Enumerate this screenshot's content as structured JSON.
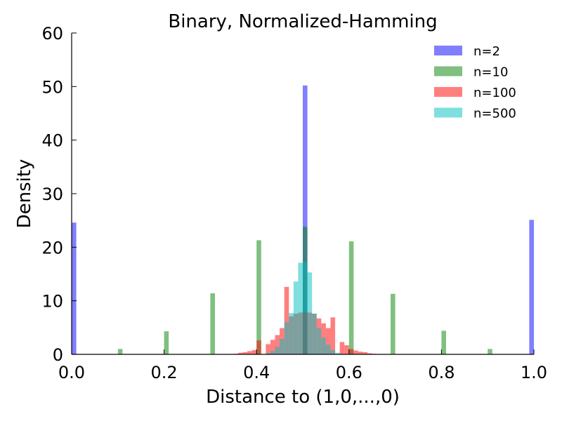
{
  "chart_data": {
    "type": "bar",
    "title": "Binary, Normalized-Hamming",
    "xlabel": "Distance to (1,0,...,0)",
    "ylabel": "Density",
    "xlim": [
      0.0,
      1.0
    ],
    "ylim": [
      0,
      60
    ],
    "xticks": [
      "0.0",
      "0.2",
      "0.4",
      "0.6",
      "0.8",
      "1.0"
    ],
    "yticks": [
      "0",
      "10",
      "20",
      "30",
      "40",
      "50",
      "60"
    ],
    "grid": false,
    "legend_position": "top-right",
    "bin_width": 0.01,
    "alpha": 0.5,
    "series": [
      {
        "name": "n=2",
        "color": "#0000ff",
        "points": [
          [
            0.0,
            24.6
          ],
          [
            0.5,
            50.2
          ],
          [
            0.99,
            25.1
          ]
        ]
      },
      {
        "name": "n=10",
        "color": "#008000",
        "points": [
          [
            0.1,
            1.0
          ],
          [
            0.2,
            4.3
          ],
          [
            0.3,
            11.4
          ],
          [
            0.4,
            21.3
          ],
          [
            0.5,
            23.8
          ],
          [
            0.6,
            21.1
          ],
          [
            0.69,
            11.3
          ],
          [
            0.8,
            4.4
          ],
          [
            0.9,
            1.0
          ]
        ]
      },
      {
        "name": "n=100",
        "color": "#ff0000",
        "points": [
          [
            0.35,
            0.1
          ],
          [
            0.36,
            0.3
          ],
          [
            0.37,
            0.4
          ],
          [
            0.38,
            0.6
          ],
          [
            0.39,
            0.8
          ],
          [
            0.4,
            2.6
          ],
          [
            0.42,
            1.9
          ],
          [
            0.43,
            2.7
          ],
          [
            0.44,
            3.6
          ],
          [
            0.45,
            4.9
          ],
          [
            0.46,
            12.6
          ],
          [
            0.47,
            7.1
          ],
          [
            0.48,
            7.6
          ],
          [
            0.49,
            7.8
          ],
          [
            0.5,
            7.9
          ],
          [
            0.51,
            7.8
          ],
          [
            0.52,
            7.6
          ],
          [
            0.53,
            6.7
          ],
          [
            0.54,
            5.8
          ],
          [
            0.55,
            4.9
          ],
          [
            0.56,
            6.9
          ],
          [
            0.58,
            2.3
          ],
          [
            0.59,
            1.7
          ],
          [
            0.6,
            1.0
          ],
          [
            0.61,
            0.7
          ],
          [
            0.62,
            0.5
          ],
          [
            0.63,
            0.4
          ],
          [
            0.64,
            0.2
          ],
          [
            0.65,
            0.1
          ]
        ]
      },
      {
        "name": "n=500",
        "color": "#00c0c0",
        "points": [
          [
            0.42,
            0.2
          ],
          [
            0.43,
            0.6
          ],
          [
            0.44,
            1.4
          ],
          [
            0.45,
            2.9
          ],
          [
            0.46,
            6.0
          ],
          [
            0.47,
            7.7
          ],
          [
            0.48,
            13.6
          ],
          [
            0.49,
            17.1
          ],
          [
            0.5,
            17.3
          ],
          [
            0.51,
            15.3
          ],
          [
            0.52,
            7.6
          ],
          [
            0.53,
            4.9
          ],
          [
            0.54,
            3.1
          ],
          [
            0.55,
            1.8
          ],
          [
            0.56,
            0.8
          ],
          [
            0.57,
            0.3
          ]
        ]
      }
    ]
  }
}
